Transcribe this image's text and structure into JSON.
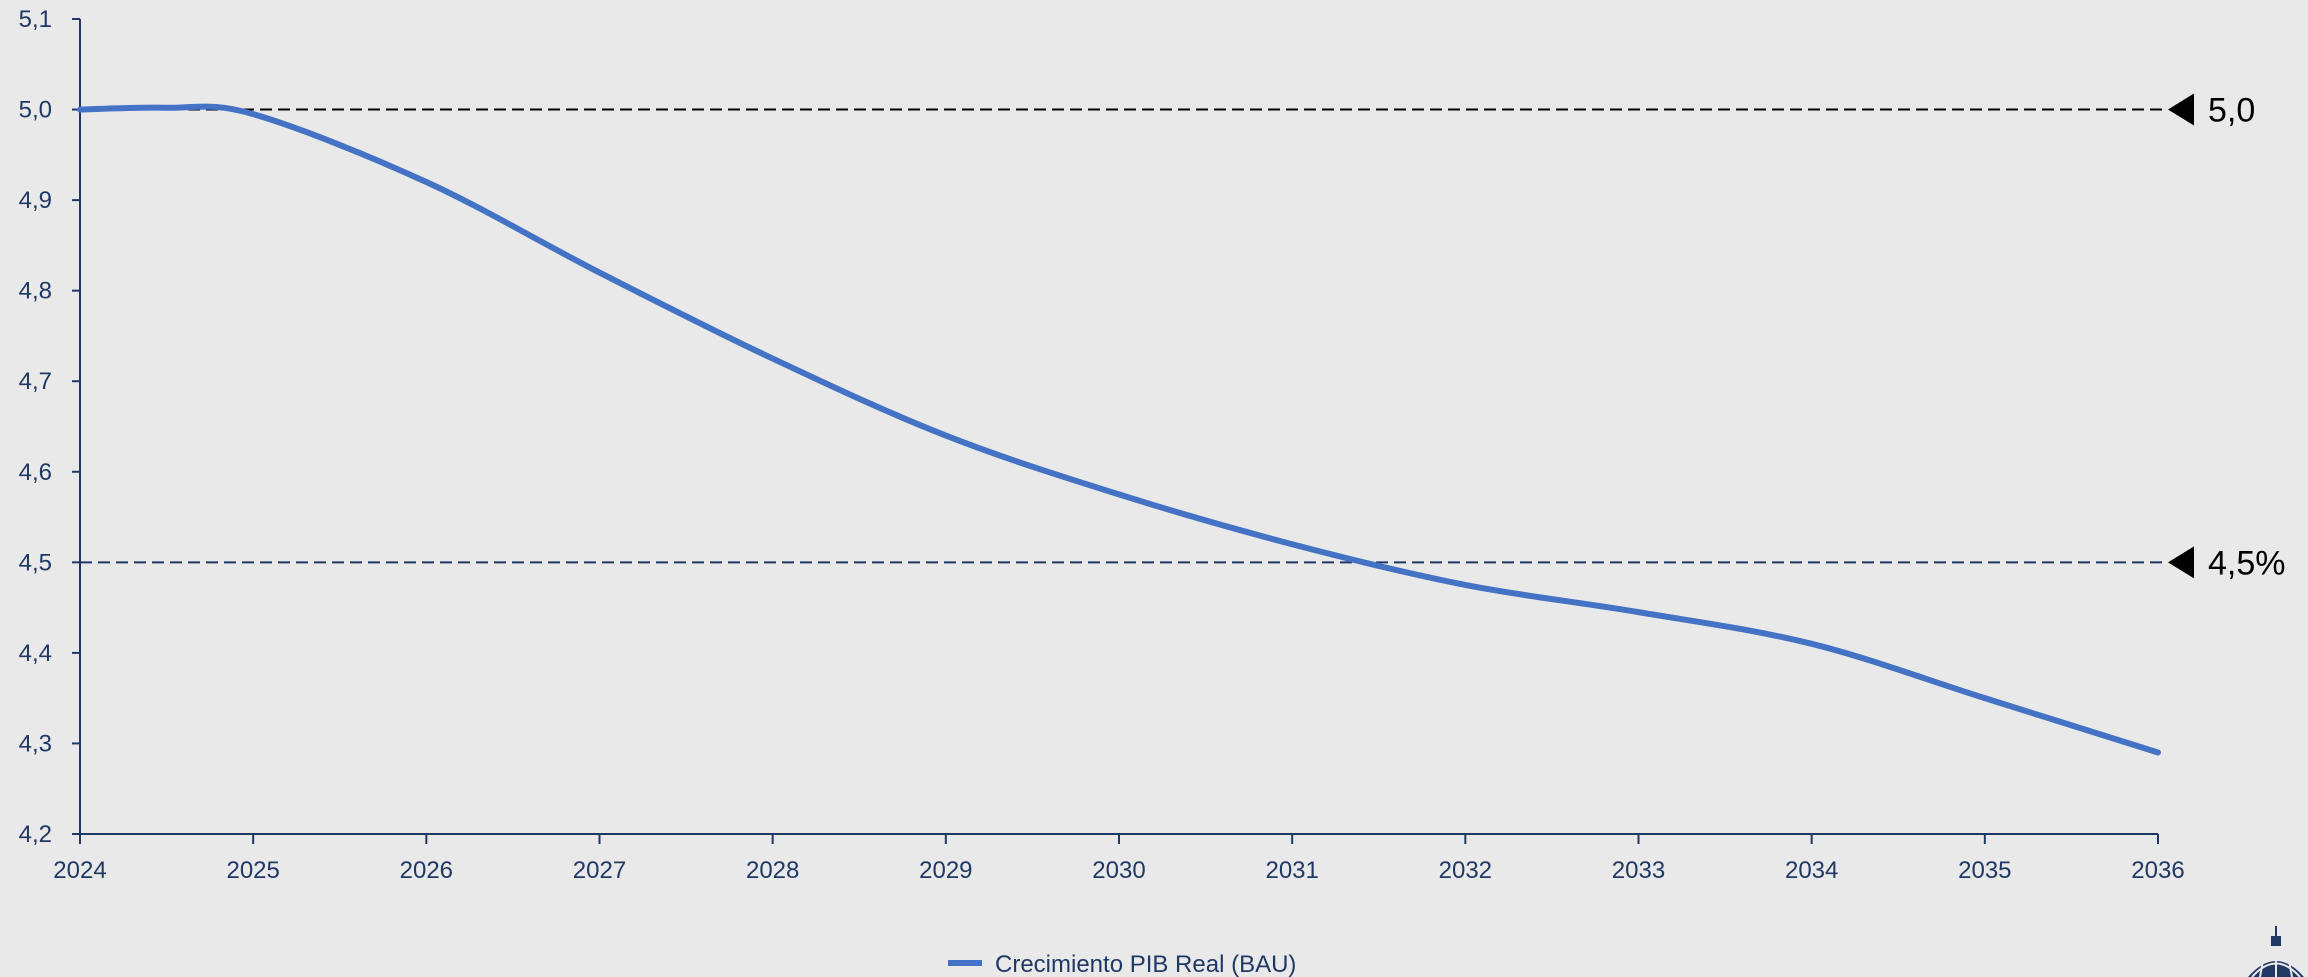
{
  "chart_data": {
    "type": "line",
    "x": [
      2024,
      2024.5,
      2025,
      2026,
      2027,
      2028,
      2029,
      2030,
      2031,
      2032,
      2033,
      2034,
      2035,
      2036
    ],
    "series": [
      {
        "name": "Crecimiento PIB Real (BAU)",
        "color": "#4472c4",
        "values": [
          5.0,
          5.002,
          4.995,
          4.92,
          4.82,
          4.725,
          4.64,
          4.575,
          4.52,
          4.475,
          4.445,
          4.41,
          4.35,
          4.29
        ]
      }
    ],
    "x_ticks": [
      "2024",
      "2025",
      "2026",
      "2027",
      "2028",
      "2029",
      "2030",
      "2031",
      "2032",
      "2033",
      "2034",
      "2035",
      "2036"
    ],
    "y_ticks": [
      "4,2",
      "4,3",
      "4,4",
      "4,5",
      "4,6",
      "4,7",
      "4,8",
      "4,9",
      "5,0",
      "5,1"
    ],
    "xlim": [
      2024,
      2036
    ],
    "ylim": [
      4.2,
      5.1
    ],
    "reference_lines": [
      {
        "value": 5.0,
        "label": "5,0",
        "color": "#000000"
      },
      {
        "value": 4.5,
        "label": "4,5%",
        "color": "#1f3864"
      }
    ],
    "axis_color": "#1f3864",
    "grid": false,
    "legend_position": "bottom-center",
    "title": "",
    "xlabel": "",
    "ylabel": ""
  },
  "logo": {
    "name": "building-dome-logo",
    "color": "#1f3864"
  }
}
